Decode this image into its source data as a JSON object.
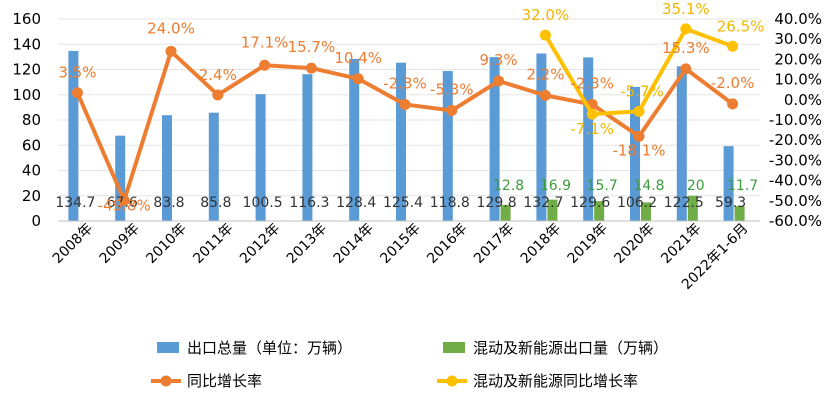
{
  "chart_data": {
    "type": "bar",
    "categories": [
      "2008年",
      "2009年",
      "2010年",
      "2011年",
      "2012年",
      "2013年",
      "2014年",
      "2015年",
      "2016年",
      "2017年",
      "2018年",
      "2019年",
      "2020年",
      "2021年",
      "2022年1-6月"
    ],
    "series": [
      {
        "name": "出口总量（单位：万辆）",
        "type": "bar",
        "axis": "left",
        "color": "#5b9bd5",
        "values": [
          134.7,
          67.6,
          83.8,
          85.8,
          100.5,
          116.3,
          128.4,
          125.4,
          118.8,
          129.8,
          132.7,
          129.6,
          106.2,
          122.5,
          59.3
        ],
        "labels": [
          "134.7",
          "67.6",
          "83.8",
          "85.8",
          "100.5",
          "116.3",
          "128.4",
          "125.4",
          "118.8",
          "129.8",
          "132.7",
          "129.6",
          "106.2",
          "122.5",
          "59.3"
        ]
      },
      {
        "name": "混动及新能源出口量（万辆）",
        "type": "bar",
        "axis": "left",
        "color": "#70ad47",
        "values": [
          null,
          null,
          null,
          null,
          null,
          null,
          null,
          null,
          null,
          12.8,
          16.9,
          15.7,
          14.8,
          20,
          11.7
        ],
        "labels": [
          "",
          "",
          "",
          "",
          "",
          "",
          "",
          "",
          "",
          "12.8",
          "16.9",
          "15.7",
          "14.8",
          "20",
          "11.7"
        ]
      },
      {
        "name": "同比增长率",
        "type": "line",
        "axis": "right",
        "color": "#ed7d31",
        "values": [
          3.5,
          -49.8,
          24.0,
          2.4,
          17.1,
          15.7,
          10.4,
          -2.3,
          -5.3,
          9.3,
          2.2,
          -2.3,
          -18.1,
          15.3,
          -2.0
        ],
        "labels": [
          "3.5%",
          "-49.8%",
          "24.0%",
          "2.4%",
          "17.1%",
          "15.7%",
          "10.4%",
          "-2.3%",
          "-5.3%",
          "9.3%",
          "2.2%",
          "-2.3%",
          "-18.1%",
          "15.3%",
          "-2.0%"
        ]
      },
      {
        "name": "混动及新能源同比增长率",
        "type": "line",
        "axis": "right",
        "color": "#ffc000",
        "values": [
          null,
          null,
          null,
          null,
          null,
          null,
          null,
          null,
          null,
          null,
          32.0,
          -7.1,
          -5.7,
          35.1,
          26.5
        ],
        "labels": [
          "",
          "",
          "",
          "",
          "",
          "",
          "",
          "",
          "",
          "",
          "32.0%",
          "-7.1%",
          "-5.7%",
          "35.1%",
          "26.5%"
        ]
      }
    ],
    "ylim": [
      0,
      160
    ],
    "yticks": [
      "0",
      "20",
      "40",
      "60",
      "80",
      "100",
      "120",
      "140",
      "160"
    ],
    "y2lim": [
      -60,
      40
    ],
    "y2ticks": [
      "-60.0%",
      "-50.0%",
      "-40.0%",
      "-30.0%",
      "-20.0%",
      "-10.0%",
      "0.0%",
      "10.0%",
      "20.0%",
      "30.0%",
      "40.0%"
    ],
    "grid": true,
    "legend_position": "bottom"
  }
}
